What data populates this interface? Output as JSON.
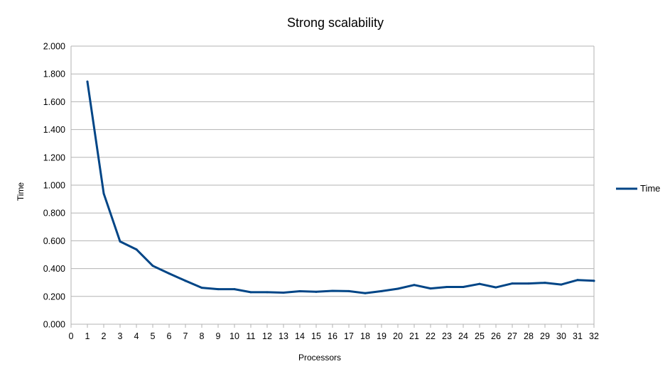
{
  "chart_data": {
    "type": "line",
    "title": "Strong scalability",
    "xlabel": "Processors",
    "ylabel": "Time",
    "x_ticks": [
      "0",
      "1",
      "2",
      "3",
      "4",
      "5",
      "6",
      "7",
      "8",
      "9",
      "10",
      "11",
      "12",
      "13",
      "14",
      "15",
      "16",
      "17",
      "18",
      "19",
      "20",
      "21",
      "22",
      "23",
      "24",
      "25",
      "26",
      "27",
      "28",
      "29",
      "30",
      "31",
      "32"
    ],
    "y_ticks": [
      "0.000",
      "0.200",
      "0.400",
      "0.600",
      "0.800",
      "1.000",
      "1.200",
      "1.400",
      "1.600",
      "1.800",
      "2.000"
    ],
    "xlim": [
      0,
      32
    ],
    "ylim": [
      0,
      2.0
    ],
    "grid": true,
    "legend_position": "right",
    "series": [
      {
        "name": "Time",
        "color": "#004586",
        "x": [
          1,
          2,
          3,
          4,
          5,
          6,
          7,
          8,
          9,
          10,
          11,
          12,
          13,
          14,
          15,
          16,
          17,
          18,
          19,
          20,
          21,
          22,
          23,
          24,
          25,
          26,
          27,
          28,
          29,
          30,
          31,
          32
        ],
        "values": [
          1.745,
          0.94,
          0.595,
          0.538,
          0.42,
          0.365,
          0.312,
          0.262,
          0.252,
          0.252,
          0.23,
          0.23,
          0.227,
          0.237,
          0.233,
          0.24,
          0.238,
          0.223,
          0.238,
          0.255,
          0.282,
          0.257,
          0.268,
          0.268,
          0.29,
          0.265,
          0.293,
          0.293,
          0.298,
          0.285,
          0.318,
          0.312
        ]
      }
    ]
  }
}
